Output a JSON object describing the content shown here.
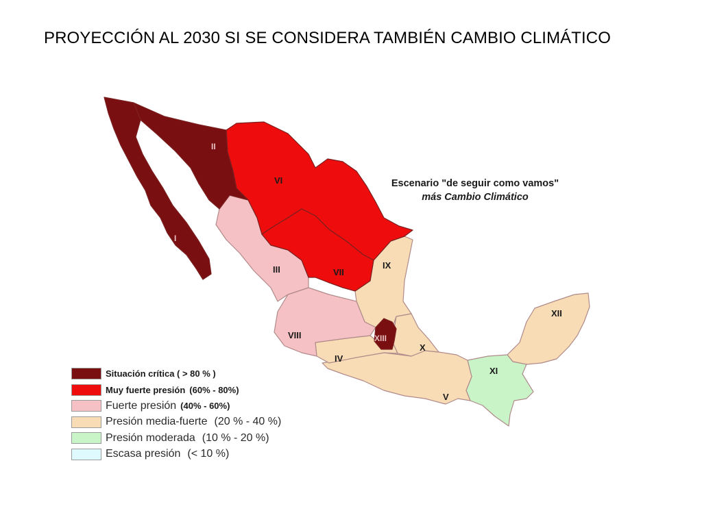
{
  "title": "PROYECCIÓN AL 2030 SI SE CONSIDERA TAMBIÉN  CAMBIO CLIMÁTICO",
  "scenario": {
    "line1": "Escenario \"de seguir como vamos\"",
    "line2": "más Cambio Climático"
  },
  "colors": {
    "critica": "#7a0f12",
    "muy_fuerte": "#ef0c0c",
    "fuerte": "#f6c1c4",
    "media_fuerte": "#f7dcb6",
    "moderada": "#c8f4c8",
    "escasa": "#dffaff"
  },
  "regions": [
    {
      "id": "I",
      "label": "I",
      "level": "critica"
    },
    {
      "id": "II",
      "label": "II",
      "level": "critica"
    },
    {
      "id": "III",
      "label": "III",
      "level": "fuerte"
    },
    {
      "id": "IV",
      "label": "IV",
      "level": "media_fuerte"
    },
    {
      "id": "V",
      "label": "V",
      "level": "media_fuerte"
    },
    {
      "id": "VI",
      "label": "VI",
      "level": "muy_fuerte"
    },
    {
      "id": "VII",
      "label": "VII",
      "level": "muy_fuerte"
    },
    {
      "id": "VIII",
      "label": "VIII",
      "level": "fuerte"
    },
    {
      "id": "IX",
      "label": "IX",
      "level": "media_fuerte"
    },
    {
      "id": "X",
      "label": "X",
      "level": "media_fuerte"
    },
    {
      "id": "XI",
      "label": "XI",
      "level": "moderada"
    },
    {
      "id": "XII",
      "label": "XII",
      "level": "media_fuerte"
    },
    {
      "id": "XIII",
      "label": "XIII",
      "level": "critica"
    }
  ],
  "legend": [
    {
      "key": "critica",
      "label": "Situación crítica ( > 80 % )",
      "range": ""
    },
    {
      "key": "muy_fuerte",
      "label": "Muy fuerte presión",
      "range": "(60% - 80%)"
    },
    {
      "key": "fuerte",
      "label": "Fuerte presión",
      "range": "(40% - 60%)"
    },
    {
      "key": "media_fuerte",
      "label": "Presión media-fuerte",
      "range": "(20 % - 40 %)"
    },
    {
      "key": "moderada",
      "label": "Presión moderada",
      "range": "(10 % - 20 %)"
    },
    {
      "key": "escasa",
      "label": "Escasa presión",
      "range": "(< 10 %)"
    }
  ]
}
